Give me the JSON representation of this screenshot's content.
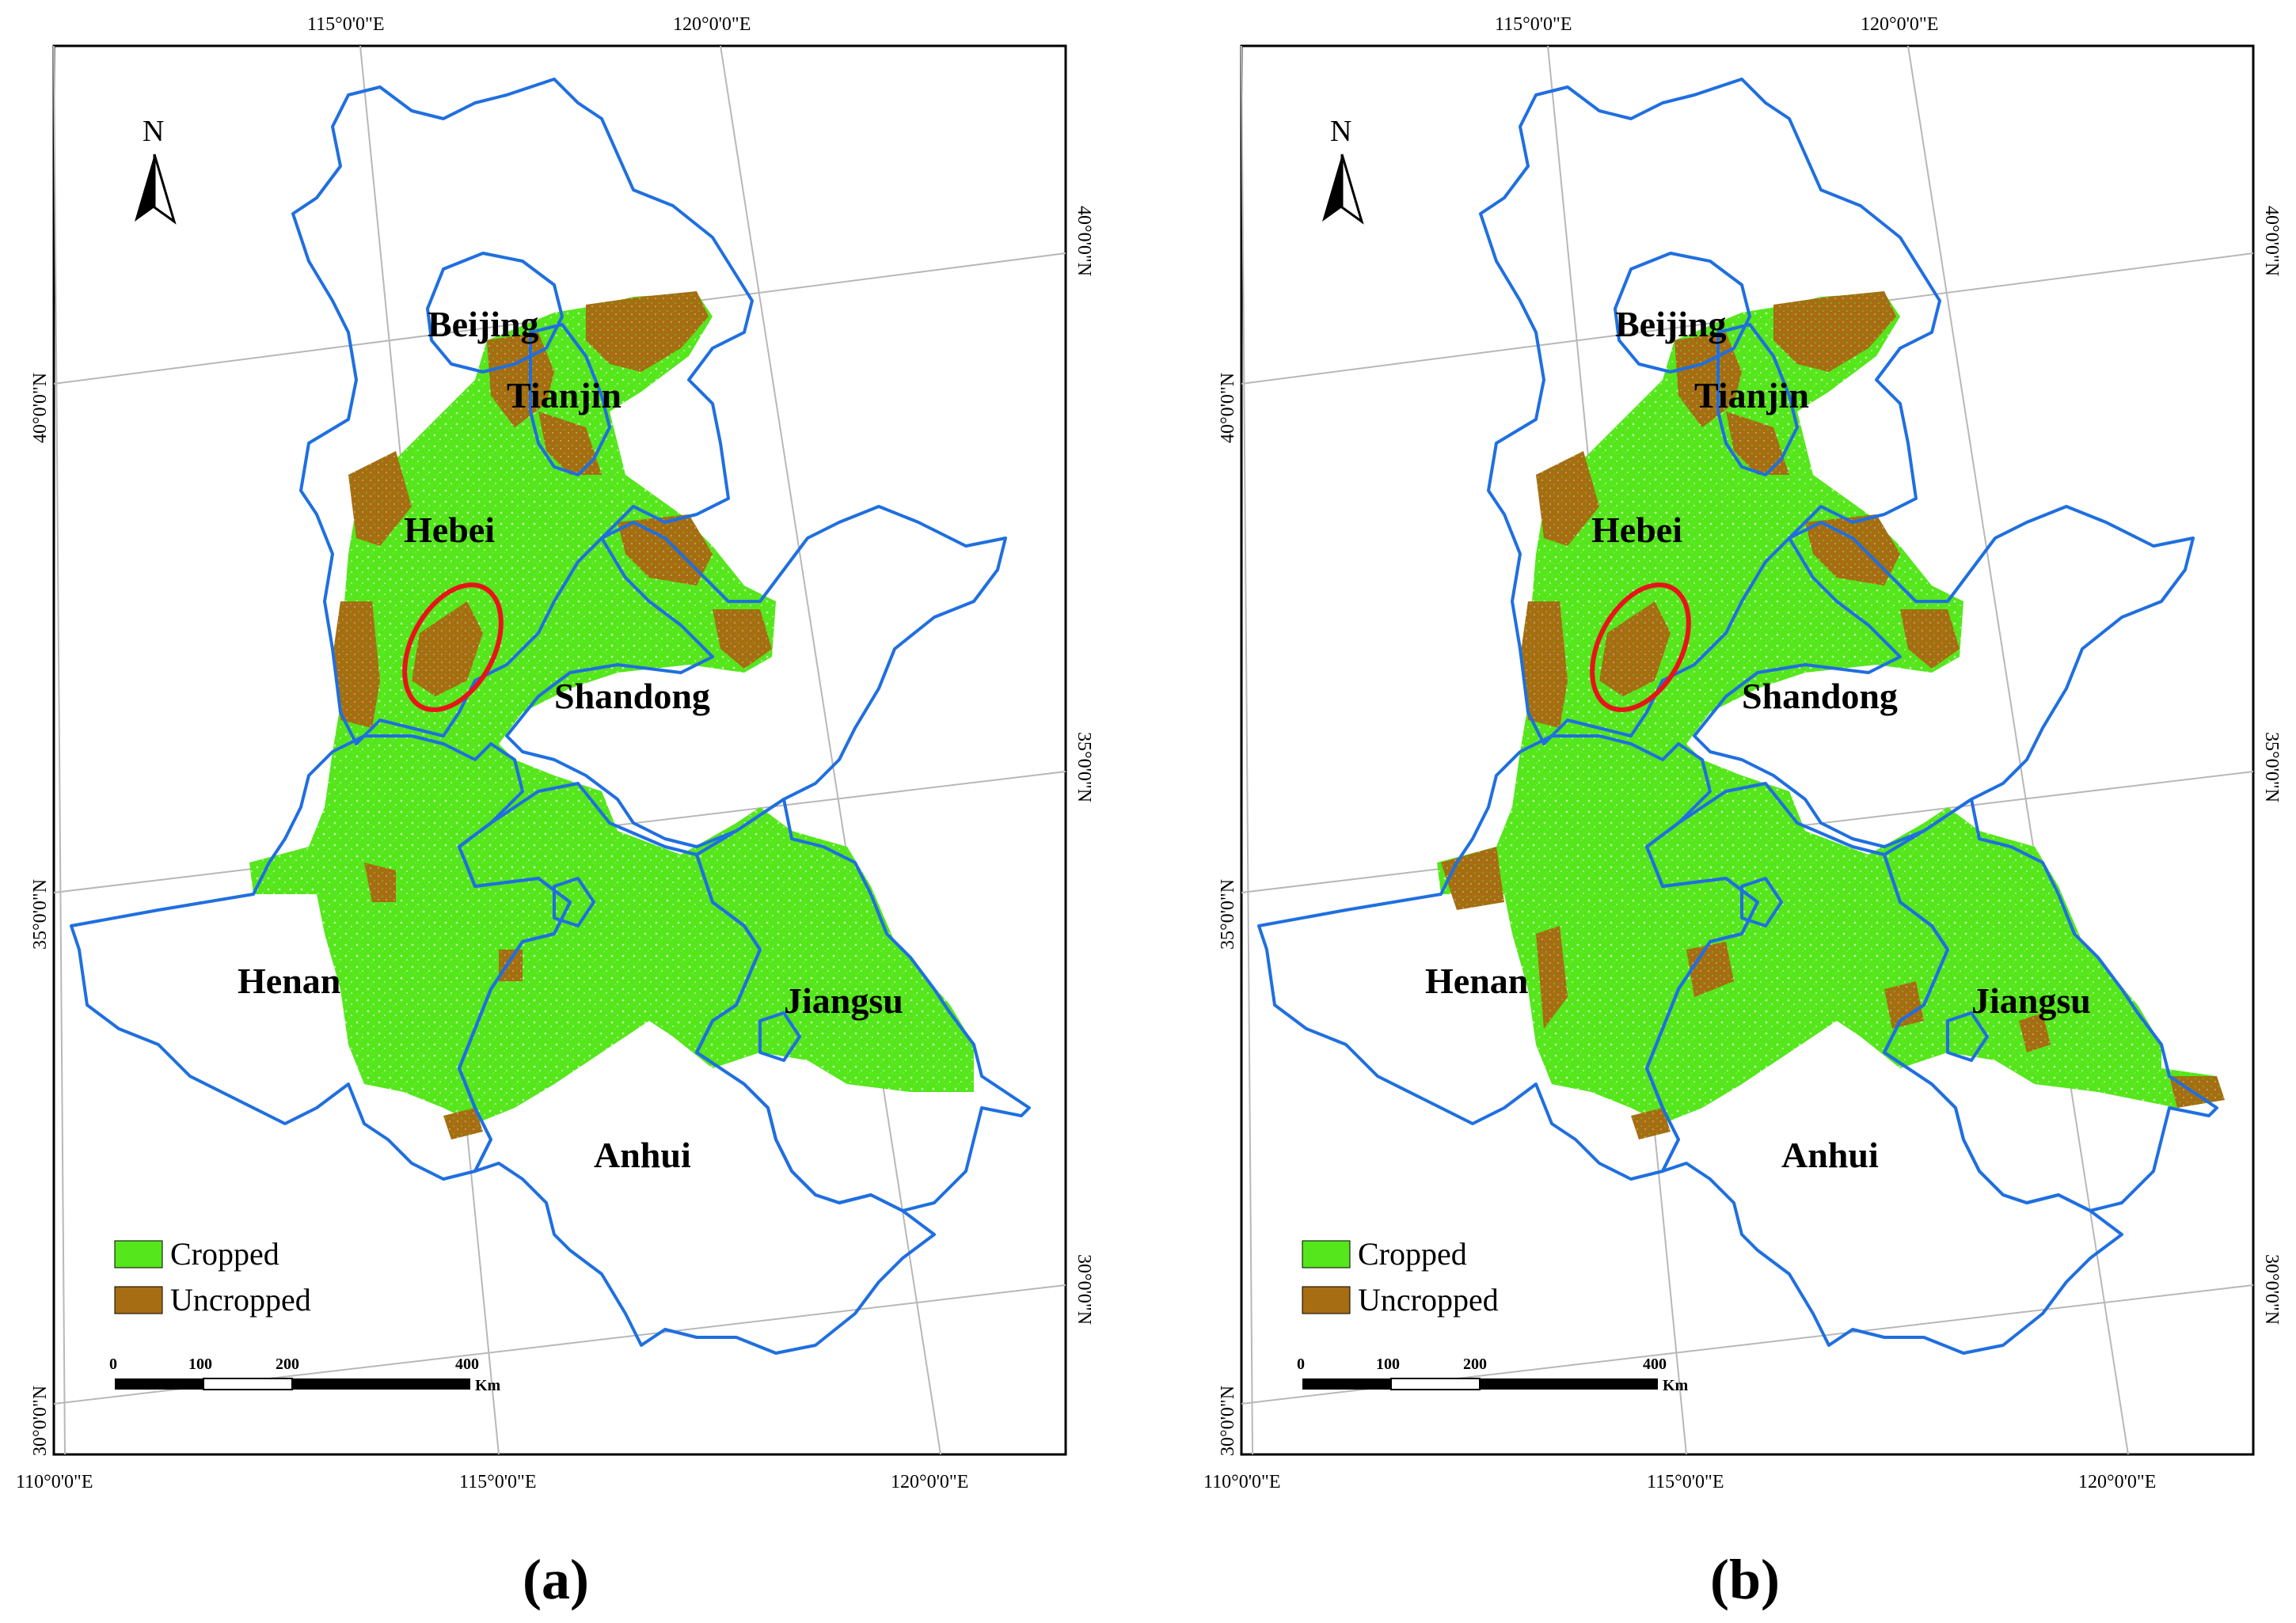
{
  "figure": {
    "panels": [
      {
        "id": "a",
        "label": "(a)"
      },
      {
        "id": "b",
        "label": "(b)"
      }
    ],
    "north_arrow_label": "N",
    "provinces": [
      "Beijing",
      "Tianjin",
      "Hebei",
      "Shandong",
      "Henan",
      "Jiangsu",
      "Anhui"
    ],
    "top_longitude_ticks": [
      "115°0'0\"E",
      "120°0'0\"E"
    ],
    "bottom_longitude_ticks": [
      "110°0'0\"E",
      "115°0'0\"E",
      "120°0'0\"E"
    ],
    "left_latitude_ticks": [
      "40°0'0\"N",
      "35°0'0\"N",
      "30°0'0\"N"
    ],
    "right_latitude_ticks": [
      "40°0'0\"N",
      "35°0'0\"N",
      "30°0'0\"N"
    ],
    "legend": [
      {
        "label": "Cropped",
        "color": "#55e61c"
      },
      {
        "label": "Uncropped",
        "color": "#a66d12"
      }
    ],
    "scale_bar": {
      "labels": [
        "0",
        "100",
        "200",
        "400"
      ],
      "unit": "Km"
    },
    "colors": {
      "boundary": "#1f6fe0",
      "highlight": "#e8141a",
      "graticule": "#b8b8b8"
    }
  }
}
